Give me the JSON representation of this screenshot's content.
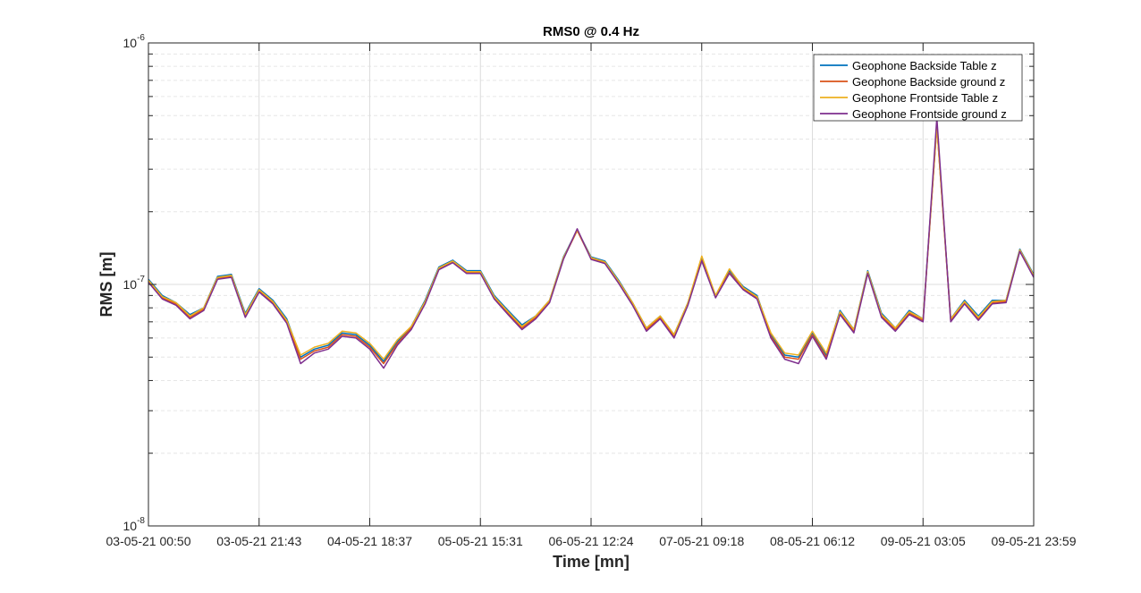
{
  "chart_data": {
    "type": "line",
    "title": "RMS0 @ 0.4 Hz",
    "xlabel": "Time [mn]",
    "ylabel": "RMS [m]",
    "yscale": "log",
    "ylim": [
      1e-08,
      1e-06
    ],
    "ytick_labels": [
      "10^-8",
      "10^-7",
      "10^-6"
    ],
    "xlim": [
      "03-05-21 00:50",
      "09-05-21 23:59"
    ],
    "xtick_labels": [
      "03-05-21 00:50",
      "03-05-21 21:43",
      "04-05-21 18:37",
      "05-05-21 15:31",
      "06-05-21 12:24",
      "07-05-21 09:18",
      "08-05-21 06:12",
      "09-05-21 03:05",
      "09-05-21 23:59"
    ],
    "grid": true,
    "legend_position": "top-right",
    "x": [
      "03-05-21 00:50",
      "03-05-21 03:27",
      "03-05-21 06:04",
      "03-05-21 08:41",
      "03-05-21 11:18",
      "03-05-21 13:55",
      "03-05-21 16:31",
      "03-05-21 19:08",
      "03-05-21 21:43",
      "04-05-21 00:20",
      "04-05-21 02:57",
      "04-05-21 05:34",
      "04-05-21 08:11",
      "04-05-21 10:48",
      "04-05-21 13:25",
      "04-05-21 16:02",
      "04-05-21 18:37",
      "04-05-21 21:14",
      "04-05-21 23:51",
      "05-05-21 02:28",
      "05-05-21 05:05",
      "05-05-21 07:42",
      "05-05-21 10:19",
      "05-05-21 12:56",
      "05-05-21 15:31",
      "05-05-21 18:08",
      "05-05-21 20:45",
      "05-05-21 23:22",
      "06-05-21 01:59",
      "06-05-21 04:36",
      "06-05-21 07:13",
      "06-05-21 09:50",
      "06-05-21 12:24",
      "06-05-21 15:01",
      "06-05-21 17:38",
      "06-05-21 20:15",
      "06-05-21 22:52",
      "07-05-21 01:29",
      "07-05-21 04:06",
      "07-05-21 06:43",
      "07-05-21 09:18",
      "07-05-21 11:55",
      "07-05-21 14:32",
      "07-05-21 17:09",
      "07-05-21 19:46",
      "07-05-21 22:23",
      "08-05-21 01:00",
      "08-05-21 03:37",
      "08-05-21 06:12",
      "08-05-21 08:49",
      "08-05-21 11:26",
      "08-05-21 14:03",
      "08-05-21 16:40",
      "08-05-21 19:17",
      "08-05-21 21:54",
      "09-05-21 00:31",
      "09-05-21 03:05",
      "09-05-21 05:42",
      "09-05-21 08:19",
      "09-05-21 10:56",
      "09-05-21 13:33",
      "09-05-21 16:10",
      "09-05-21 18:47",
      "09-05-21 21:24",
      "09-05-21 23:59"
    ],
    "series": [
      {
        "name": "Geophone Backside Table z",
        "color": "#0072BD",
        "values": [
          1.05e-07,
          9e-08,
          8.4e-08,
          7.5e-08,
          8e-08,
          1.08e-07,
          1.1e-07,
          7.6e-08,
          9.6e-08,
          8.6e-08,
          7.2e-08,
          5e-08,
          5.4e-08,
          5.6e-08,
          6.3e-08,
          6.2e-08,
          5.6e-08,
          4.8e-08,
          5.8e-08,
          6.7e-08,
          8.6e-08,
          1.18e-07,
          1.26e-07,
          1.14e-07,
          1.14e-07,
          9e-08,
          7.8e-08,
          6.8e-08,
          7.4e-08,
          8.6e-08,
          1.3e-07,
          1.68e-07,
          1.3e-07,
          1.25e-07,
          1.04e-07,
          8.4e-08,
          6.6e-08,
          7.4e-08,
          6.2e-08,
          8.4e-08,
          1.28e-07,
          9e-08,
          1.14e-07,
          9.8e-08,
          9e-08,
          6.2e-08,
          5.1e-08,
          5e-08,
          6.3e-08,
          5.1e-08,
          7.8e-08,
          6.5e-08,
          1.14e-07,
          7.6e-08,
          6.6e-08,
          7.8e-08,
          7.2e-08,
          4.6e-07,
          7.2e-08,
          8.6e-08,
          7.4e-08,
          8.6e-08,
          8.6e-08,
          1.4e-07,
          1.1e-07
        ]
      },
      {
        "name": "Geophone Backside ground z",
        "color": "#D95319",
        "values": [
          1.03e-07,
          8.8e-08,
          8.3e-08,
          7.3e-08,
          7.9e-08,
          1.06e-07,
          1.08e-07,
          7.4e-08,
          9.4e-08,
          8.4e-08,
          7e-08,
          4.9e-08,
          5.3e-08,
          5.5e-08,
          6.2e-08,
          6.1e-08,
          5.5e-08,
          4.7e-08,
          5.7e-08,
          6.6e-08,
          8.4e-08,
          1.16e-07,
          1.24e-07,
          1.12e-07,
          1.12e-07,
          8.8e-08,
          7.6e-08,
          6.6e-08,
          7.3e-08,
          8.5e-08,
          1.28e-07,
          1.67e-07,
          1.28e-07,
          1.23e-07,
          1.02e-07,
          8.3e-08,
          6.5e-08,
          7.3e-08,
          6.1e-08,
          8.3e-08,
          1.26e-07,
          8.9e-08,
          1.12e-07,
          9.6e-08,
          8.8e-08,
          6.1e-08,
          5e-08,
          4.9e-08,
          6.2e-08,
          5e-08,
          7.6e-08,
          6.4e-08,
          1.12e-07,
          7.4e-08,
          6.5e-08,
          7.6e-08,
          7.1e-08,
          4.5e-07,
          7.1e-08,
          8.4e-08,
          7.2e-08,
          8.4e-08,
          8.5e-08,
          1.38e-07,
          1.08e-07
        ]
      },
      {
        "name": "Geophone Frontside Table z",
        "color": "#EDB120",
        "values": [
          1.04e-07,
          8.9e-08,
          8.4e-08,
          7.4e-08,
          8e-08,
          1.07e-07,
          1.09e-07,
          7.5e-08,
          9.5e-08,
          8.5e-08,
          7.1e-08,
          5.1e-08,
          5.5e-08,
          5.7e-08,
          6.4e-08,
          6.3e-08,
          5.7e-08,
          4.9e-08,
          5.9e-08,
          6.7e-08,
          8.5e-08,
          1.17e-07,
          1.25e-07,
          1.13e-07,
          1.13e-07,
          8.9e-08,
          7.7e-08,
          6.7e-08,
          7.4e-08,
          8.6e-08,
          1.29e-07,
          1.68e-07,
          1.29e-07,
          1.24e-07,
          1.03e-07,
          8.4e-08,
          6.6e-08,
          7.4e-08,
          6.2e-08,
          8.4e-08,
          1.31e-07,
          9e-08,
          1.16e-07,
          9.7e-08,
          8.9e-08,
          6.3e-08,
          5.2e-08,
          5.1e-08,
          6.4e-08,
          5.2e-08,
          7.7e-08,
          6.5e-08,
          1.13e-07,
          7.5e-08,
          6.6e-08,
          7.7e-08,
          7.2e-08,
          4.5e-07,
          7.2e-08,
          8.5e-08,
          7.3e-08,
          8.5e-08,
          8.6e-08,
          1.39e-07,
          1.09e-07
        ]
      },
      {
        "name": "Geophone Frontside ground z",
        "color": "#7E2F8E",
        "values": [
          1.02e-07,
          8.7e-08,
          8.2e-08,
          7.2e-08,
          7.8e-08,
          1.05e-07,
          1.07e-07,
          7.3e-08,
          9.3e-08,
          8.3e-08,
          6.9e-08,
          4.7e-08,
          5.2e-08,
          5.4e-08,
          6.1e-08,
          6e-08,
          5.4e-08,
          4.5e-08,
          5.6e-08,
          6.5e-08,
          8.3e-08,
          1.15e-07,
          1.23e-07,
          1.11e-07,
          1.11e-07,
          8.7e-08,
          7.5e-08,
          6.5e-08,
          7.2e-08,
          8.4e-08,
          1.27e-07,
          1.7e-07,
          1.27e-07,
          1.22e-07,
          1.01e-07,
          8.2e-08,
          6.4e-08,
          7.2e-08,
          6e-08,
          8.2e-08,
          1.25e-07,
          8.8e-08,
          1.11e-07,
          9.5e-08,
          8.7e-08,
          6e-08,
          4.9e-08,
          4.7e-08,
          6.1e-08,
          4.9e-08,
          7.5e-08,
          6.3e-08,
          1.11e-07,
          7.3e-08,
          6.4e-08,
          7.5e-08,
          7e-08,
          4.9e-07,
          7e-08,
          8.3e-08,
          7.1e-08,
          8.3e-08,
          8.4e-08,
          1.37e-07,
          1.07e-07
        ]
      }
    ]
  }
}
